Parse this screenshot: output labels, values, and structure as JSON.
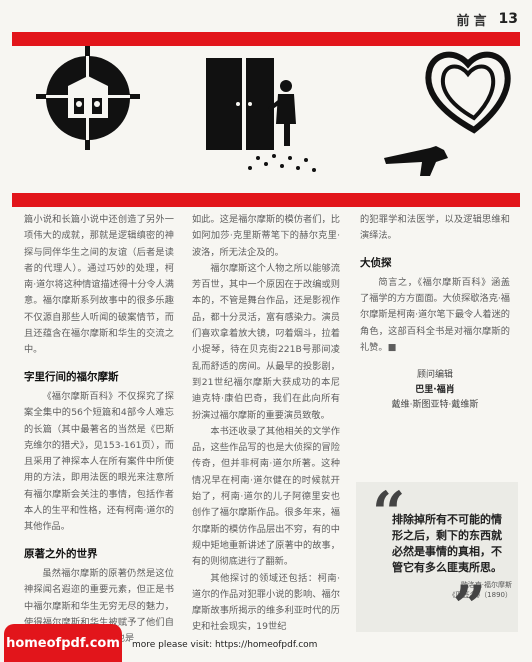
{
  "header": {
    "section": "前言",
    "page_number": "13"
  },
  "illustrations": [
    {
      "icon": "crosshair-target-icon"
    },
    {
      "icon": "door-figure-icon"
    },
    {
      "icon": "heart-revolver-icon"
    }
  ],
  "col1": {
    "p1": "篇小说和长篇小说中还创造了另外一项伟大的成就，那就是逻辑缜密的神探与同伴华生之间的友谊（后者是读者的代理人）。通过巧妙的处理，柯南·道尔将这种情谊描述得十分令人满意。福尔摩斯系列故事中的很多乐趣不仅源自那些人听闻的破案情节，而且还蕴含在福尔摩斯和华生的交流之中。",
    "h_title": "字里行间的福尔摩斯",
    "p2": "《福尔摩斯百科》不仅探究了探案全集中的56个短篇和4部今人难忘的长篇（其中最著名的当然是《巴斯克维尔的猎犬》，见153-161页），而且采用了神探本人在所有案件中所使用的方法，即用法医的眼光来注意所有福尔摩斯会关注的事情，包括作者本人的生平和性格，还有柯南·道尔的其他作品。",
    "h_beyond": "原著之外的世界",
    "p3": "虽然福尔摩斯的原著仍然是这位神探闻名遐迩的重要元素，但正是书中福尔摩斯和华生无穷无尽的魅力，使得福尔摩斯和华生被赋予了他们自己的生命，即使在今天也是"
  },
  "col2": {
    "p1": "如此。这是福尔摩斯的模仿者们，比如阿加莎·克里斯蒂笔下的赫尔克里·波洛，所无法企及的。",
    "p2": "福尔摩斯这个人物之所以能够流芳百世，其中一个原因在于改编或则本的，不管是舞台作品，还是影视作品，都十分灵活，富有感染力。演员们喜欢拿着放大镜，叼着烟斗，拉着小提琴，待在贝克街221B号那间凌乱而舒适的房间。从最早的投影剧，到21世纪福尔摩斯大获成功的本尼迪克特·康伯巴奇，我们在此向所有扮演过福尔摩斯的重要演员致敬。",
    "p3": "本书还收录了其他相关的文学作品，这些作品写的也是大侦探的冒险传奇，但并非柯南·道尔所著。这种情况早在柯南·道尔健在的时候就开始了，柯南·道尔的儿子阿德里安也创作了福尔摩斯作品。很多年来，福尔摩斯的模仿作品层出不穷，有的中规中矩地重新讲述了原著中的故事，有的则彻底进行了翻新。",
    "p4": "其他探讨的领域还包括：柯南·道尔的作品对犯罪小说的影响、福尔摩斯故事所揭示的维多利亚时代的历史和社会现实，19世纪"
  },
  "col3": {
    "p1": "的犯罪学和法医学，以及逻辑思维和演绎法。",
    "h_detective": "大侦探",
    "p2": "简言之，《福尔摩斯百科》涵盖了福学的方方面面。大侦探歇洛克·福尔摩斯是柯南·道尔笔下最令人着迷的角色，这部百科全书是对福尔摩斯的礼赞。",
    "p2_end_mark": "■",
    "sig_role": "顾问编辑",
    "sig_name1": "巴里·福肖",
    "sig_name2": "戴维·斯图亚特·戴维斯"
  },
  "quote": {
    "open_mark": "“",
    "close_mark": "”",
    "text": "排除掉所有不可能的情形之后，剩下的东西就必然是事情的真相，不管它有多么匪夷所思。",
    "source_1": "歇洛克·福尔摩斯",
    "source_2": "《四签名》（1890）"
  },
  "watermark": {
    "label": "homeofpdf.com",
    "note": "more please visit: https://homeofpdf.com"
  },
  "colors": {
    "accent": "#e2151b",
    "text": "#5d5d5d",
    "quote_bg": "#ebebe6"
  }
}
